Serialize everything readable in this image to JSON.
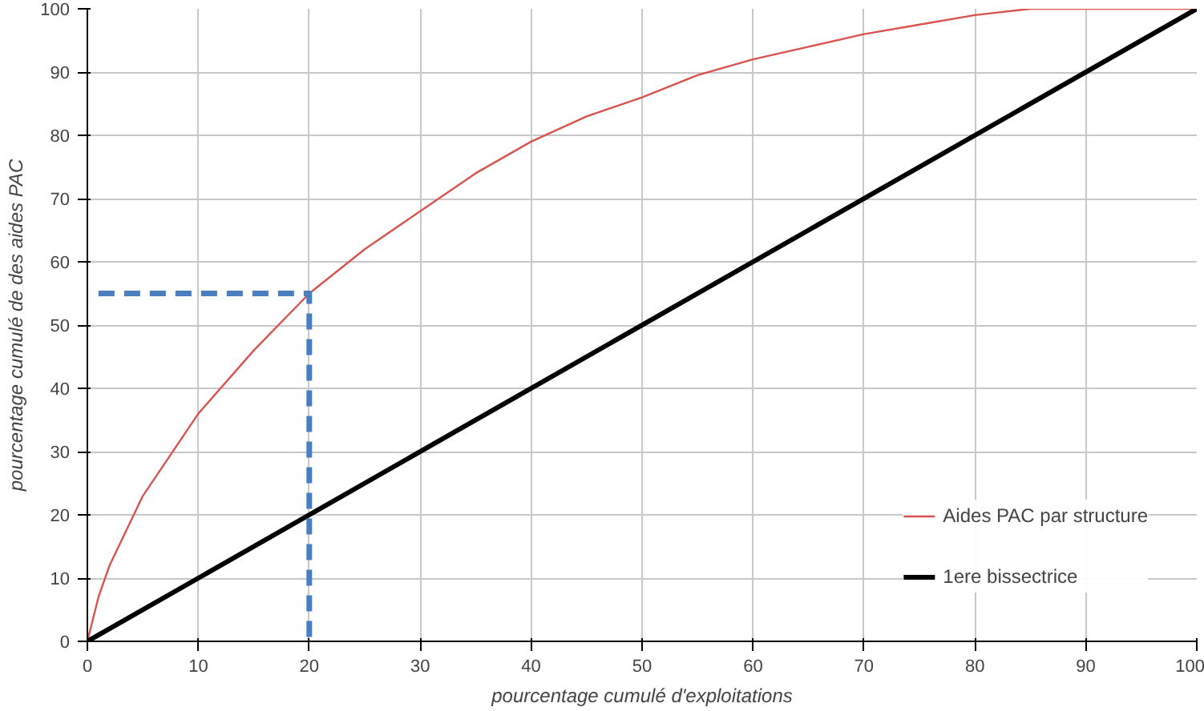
{
  "chart_data": {
    "type": "line",
    "xlabel": "pourcentage cumulé d'exploitations",
    "ylabel": "pourcentage cumulé de des aides PAC",
    "xlim": [
      0,
      100
    ],
    "ylim": [
      0,
      100
    ],
    "xticks": [
      0,
      10,
      20,
      30,
      40,
      50,
      60,
      70,
      80,
      90,
      100
    ],
    "yticks": [
      0,
      10,
      20,
      30,
      40,
      50,
      60,
      70,
      80,
      90,
      100
    ],
    "grid": true,
    "legend": "bottom right",
    "marker": "none",
    "series": [
      {
        "name": "Aides PAC par structure",
        "color": "#d9534f",
        "x": [
          0,
          1,
          2,
          5,
          10,
          15,
          20,
          25,
          30,
          35,
          40,
          45,
          50,
          55,
          60,
          65,
          70,
          75,
          80,
          85,
          90,
          100
        ],
        "values": [
          0,
          7,
          12,
          23,
          36,
          46,
          55,
          62,
          68,
          74,
          79,
          83,
          86,
          89.5,
          92,
          94,
          96,
          97.5,
          99,
          100,
          100,
          100
        ]
      },
      {
        "name": "1ere bissectrice",
        "color": "#000000",
        "x": [
          0,
          100
        ],
        "values": [
          0,
          100
        ]
      },
      {
        "color": "#4a7ebf",
        "line_style": "dashed",
        "x": [
          1,
          20,
          20
        ],
        "values": [
          55,
          55,
          0
        ]
      }
    ]
  }
}
